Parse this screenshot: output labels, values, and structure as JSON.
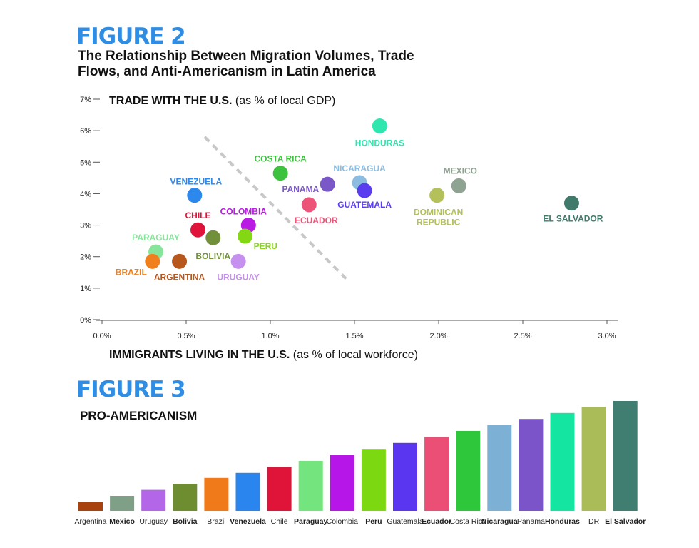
{
  "figure2": {
    "label": "FIGURE 2",
    "title_line1": "The Relationship Between Migration Volumes, Trade",
    "title_line2": "Flows, and Anti-Americanism in Latin America",
    "y_title_bold": "TRADE WITH THE U.S.",
    "y_title_normal": " (as % of local GDP)",
    "x_title_bold": "IMMIGRANTS LIVING IN THE U.S.",
    "x_title_normal": " (as % of local workforce)"
  },
  "figure3": {
    "label": "FIGURE 3",
    "title": "PRO-AMERICANISM"
  },
  "chart_data": [
    {
      "type": "scatter",
      "xlabel": "IMMIGRANTS LIVING IN THE U.S. (as % of local workforce)",
      "ylabel": "TRADE WITH THE U.S. (as % of local GDP)",
      "xlim": [
        0,
        3.0
      ],
      "ylim": [
        0,
        7
      ],
      "x_ticks": [
        "0.0%",
        "0.5%",
        "1.0%",
        "1.5%",
        "2.0%",
        "2.5%",
        "3.0%"
      ],
      "y_ticks": [
        "0%",
        "1%",
        "2%",
        "3%",
        "4%",
        "5%",
        "6%",
        "7%"
      ],
      "divider_line": {
        "from": [
          0.61,
          5.8
        ],
        "to": [
          1.45,
          1.3
        ]
      },
      "points": [
        {
          "name": "HONDURAS",
          "x": 1.65,
          "y": 6.15,
          "color": "#2ee6ae"
        },
        {
          "name": "COSTA RICA",
          "x": 1.06,
          "y": 4.65,
          "color": "#3cc23c"
        },
        {
          "name": "NICARAGUA",
          "x": 1.53,
          "y": 4.35,
          "color": "#8cbde0"
        },
        {
          "name": "MEXICO",
          "x": 2.12,
          "y": 4.25,
          "color": "#8fa392"
        },
        {
          "name": "PANAMA",
          "x": 1.34,
          "y": 4.3,
          "color": "#7a58c8"
        },
        {
          "name": "GUATEMALA",
          "x": 1.56,
          "y": 4.1,
          "color": "#5b3df0"
        },
        {
          "name": "VENEZUELA",
          "x": 0.55,
          "y": 3.95,
          "color": "#2d88ee"
        },
        {
          "name": "DOMINICAN REPUBLIC",
          "x": 1.99,
          "y": 3.95,
          "color": "#b4c05a"
        },
        {
          "name": "ECUADOR",
          "x": 1.23,
          "y": 3.65,
          "color": "#ec5578"
        },
        {
          "name": "EL SALVADOR",
          "x": 2.79,
          "y": 3.7,
          "color": "#3f7a6a"
        },
        {
          "name": "CHILE",
          "x": 0.57,
          "y": 2.85,
          "color": "#e0143a"
        },
        {
          "name": "COLOMBIA",
          "x": 0.87,
          "y": 3.0,
          "color": "#b91ae4"
        },
        {
          "name": "BOLIVIA",
          "x": 0.66,
          "y": 2.6,
          "color": "#72903a"
        },
        {
          "name": "PERU",
          "x": 0.85,
          "y": 2.65,
          "color": "#84d813"
        },
        {
          "name": "PARAGUAY",
          "x": 0.32,
          "y": 2.15,
          "color": "#86e59a"
        },
        {
          "name": "BRAZIL",
          "x": 0.3,
          "y": 1.85,
          "color": "#f0801e"
        },
        {
          "name": "ARGENTINA",
          "x": 0.46,
          "y": 1.85,
          "color": "#b8571c"
        },
        {
          "name": "URUGUAY",
          "x": 0.81,
          "y": 1.85,
          "color": "#c690ee"
        }
      ]
    },
    {
      "type": "bar",
      "title": "PRO-AMERICANISM",
      "categories": [
        "Argentina",
        "Mexico",
        "Uruguay",
        "Bolivia",
        "Brazil",
        "Venezuela",
        "Chile",
        "Paraguay",
        "Colombia",
        "Peru",
        "Guatemala",
        "Ecuador",
        "Costa Rica",
        "Nicaragua",
        "Panama",
        "Honduras",
        "DR",
        "El Salvador"
      ],
      "bold_categories": [
        "Mexico",
        "Bolivia",
        "Venezuela",
        "Paraguay",
        "Peru",
        "Ecuador",
        "Nicaragua",
        "Honduras",
        "El Salvador"
      ],
      "values": [
        9,
        15,
        21,
        27,
        33,
        38,
        44,
        50,
        56,
        62,
        68,
        74,
        80,
        86,
        92,
        98,
        104,
        110
      ],
      "colors": [
        "#a8420e",
        "#7f9f86",
        "#b466e8",
        "#6e8c30",
        "#f07a1a",
        "#2a86ee",
        "#e01438",
        "#74e47e",
        "#b616e8",
        "#7cd810",
        "#5a36f0",
        "#ec4f76",
        "#2ec63a",
        "#7cb0d4",
        "#7a54c8",
        "#14e6a2",
        "#aabc58",
        "#3f7e70"
      ]
    }
  ]
}
